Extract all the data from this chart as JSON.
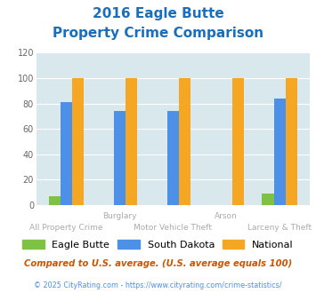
{
  "title_line1": "2016 Eagle Butte",
  "title_line2": "Property Crime Comparison",
  "eagle_butte": [
    7,
    0,
    0,
    0,
    9
  ],
  "south_dakota": [
    81,
    74,
    74,
    0,
    84
  ],
  "national": [
    100,
    100,
    100,
    100,
    100
  ],
  "top_xlabels": [
    "",
    "Burglary",
    "",
    "Arson",
    ""
  ],
  "bot_xlabels": [
    "All Property Crime",
    "",
    "Motor Vehicle Theft",
    "",
    "Larceny & Theft"
  ],
  "ylim": [
    0,
    120
  ],
  "yticks": [
    0,
    20,
    40,
    60,
    80,
    100,
    120
  ],
  "color_eagle_butte": "#7dc242",
  "color_south_dakota": "#4d90e8",
  "color_national": "#f5a623",
  "bg_color": "#d8e8ed",
  "title_color": "#1a6fbc",
  "xlabel_top_color": "#aaaaaa",
  "xlabel_bot_color": "#aaaaaa",
  "legend_label_eagle": "Eagle Butte",
  "legend_label_sd": "South Dakota",
  "legend_label_nat": "National",
  "footnote1": "Compared to U.S. average. (U.S. average equals 100)",
  "footnote2": "© 2025 CityRating.com - https://www.cityrating.com/crime-statistics/",
  "footnote1_color": "#cc5500",
  "footnote2_color": "#4d90e8"
}
